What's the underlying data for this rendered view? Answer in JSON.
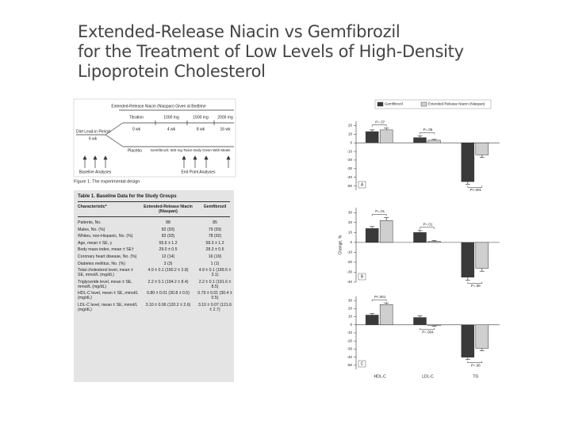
{
  "title": [
    "Extended-Release Niacin vs Gemfibrozil",
    "for the Treatment of Low Levels of High-Density",
    "Lipoprotein Cholesterol"
  ],
  "figure1": {
    "header": "Extended-Release Niacin (Niaspan) Given at Bedtime",
    "doses": [
      "Titration",
      "1000 mg",
      "1500 mg",
      "2000 mg"
    ],
    "weeks": [
      "0 wk",
      "4 wk",
      "8 wk",
      "16 wk"
    ],
    "leadin": "Diet Lead-in Period",
    "leadin_weeks": "6 wk",
    "placebo": "Placebo",
    "gemfibrozil": "Gemfibrozil, 600 mg Twice Daily Given With Meals",
    "baseline": "Baseline Analyses",
    "endpoint": "End Point Analyses",
    "caption": "Figure 1. The experimental design"
  },
  "table1": {
    "title": "Table 1. Baseline Data for the Study Groups",
    "columns": [
      "Characteristic*",
      "Extended-Release Niacin (Niaspan)",
      "Gemfibrozil"
    ],
    "rows": [
      [
        "Patients, No.",
        "88",
        "85"
      ],
      [
        "Males, No. (%)",
        "82 (93)",
        "79 (93)"
      ],
      [
        "Whites, non-Hispanic, No. (%)",
        "82 (93)",
        "78 (92)"
      ],
      [
        "Age, mean ± SE, y",
        "55.6 ± 1.2",
        "58.3 ± 1.2"
      ],
      [
        "Body mass index, mean ± SE†",
        "29.0 ± 0.5",
        "28.3 ± 0.5"
      ],
      [
        "Coronary heart disease, No. (%)",
        "12 (14)",
        "16 (19)"
      ],
      [
        "Diabetes mellitus, No. (%)",
        "3 (3)",
        "1 (1)"
      ],
      [
        "Total cholesterol level, mean ± SE, mmol/L (mg/dL)",
        "4.9 ± 0.1 (190.2 ± 2.8)",
        "4.9 ± 0.1 (189.5 ± 3.1)"
      ],
      [
        "Triglyceride level, mean ± SE, mmol/L (mg/dL)",
        "2.2 ± 0.1 (194.2 ± 8.4)",
        "2.2 ± 0.1 (191.6 ± 8.5)"
      ],
      [
        "HDL-C level, mean ± SE, mmol/L (mg/dL)",
        "0.80 ± 0.01 (30.8 ± 0.5)",
        "0.79 ± 0.01 (30.4 ± 0.5)"
      ],
      [
        "LDL-C level, mean ± SE, mmol/L (mg/dL)",
        "3.10 ± 0.06 (120.2 ± 2.6)",
        "3.10 ± 0.07 (121.6 ± 2.7)"
      ]
    ]
  },
  "legend": [
    {
      "name": "Gemfibrozil",
      "color": "#3a3a3a"
    },
    {
      "name": "Extended-Release Niacin (Niaspan)",
      "color": "#cfcfcf"
    }
  ],
  "chart_data": [
    {
      "type": "bar",
      "panel": "A",
      "categories": [
        null,
        null,
        null
      ],
      "series": [
        {
          "values": [
            13,
            6,
            -45
          ],
          "errors": [
            2,
            2,
            3
          ]
        },
        {
          "values": [
            15,
            3,
            -14
          ],
          "errors": [
            2,
            1,
            3
          ]
        }
      ],
      "annotations": [
        "P=.37",
        "P=.06",
        "P<.001"
      ],
      "ylim": [
        -55,
        25
      ],
      "yticks": [
        20,
        10,
        0,
        -10,
        -20,
        -30,
        -40,
        -50
      ]
    },
    {
      "type": "bar",
      "panel": "B",
      "ylabel": "Change, %",
      "categories": [
        null,
        null,
        null
      ],
      "series": [
        {
          "values": [
            14,
            10,
            -35
          ],
          "errors": [
            2,
            2,
            3
          ]
        },
        {
          "values": [
            22,
            1,
            -26
          ],
          "errors": [
            3,
            1,
            3
          ]
        }
      ],
      "annotations": [
        "P=.01",
        "P=.01",
        "P=.06"
      ],
      "ylim": [
        -40,
        35
      ],
      "yticks": [
        30,
        20,
        10,
        0,
        -10,
        -20,
        -30,
        -40
      ]
    },
    {
      "type": "bar",
      "panel": "C",
      "categories": [
        "HDL-C",
        "LDL-C",
        "TG"
      ],
      "series": [
        {
          "values": [
            12,
            9,
            -40
          ],
          "errors": [
            2,
            2,
            3
          ]
        },
        {
          "values": [
            25,
            -1,
            -29
          ],
          "errors": [
            2,
            1,
            3
          ]
        }
      ],
      "annotations": [
        "P<.001",
        "P=.004",
        "P=.06"
      ],
      "ylim": [
        -55,
        35
      ],
      "yticks": [
        30,
        20,
        10,
        0,
        -10,
        -20,
        -30,
        -40,
        -50
      ]
    }
  ]
}
